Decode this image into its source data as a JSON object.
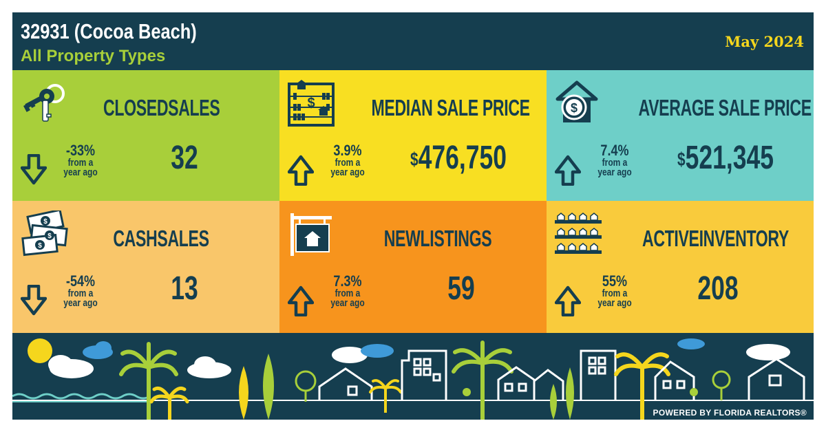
{
  "header": {
    "title": "32931 (Cocoa Beach)",
    "subtitle": "All Property Types",
    "date": "May 2024"
  },
  "colors": {
    "navy": "#153e4f",
    "green": "#a8cf3a",
    "yellow": "#f8df22",
    "teal": "#6ecfc8",
    "peach": "#f9c66a",
    "orange": "#f7941d",
    "gold": "#f9cb3c"
  },
  "tiles": [
    {
      "label": "CLOSEDSALES",
      "value": "32",
      "change": "-33%",
      "change_text": "from a",
      "change_text2": "year ago",
      "direction": "down",
      "icon": "keys-icon"
    },
    {
      "label": "MEDIAN SALE PRICE",
      "value_prefix": "$",
      "value": "476,750",
      "change": "3.9%",
      "change_text": "from a",
      "change_text2": "year ago",
      "direction": "up",
      "icon": "abacus-icon"
    },
    {
      "label": "AVERAGE SALE PRICE",
      "value_prefix": "$",
      "value": "521,345",
      "change": "7.4%",
      "change_text": "from a",
      "change_text2": "year ago",
      "direction": "up",
      "icon": "house-dollar-icon"
    },
    {
      "label": "CASHSALES",
      "value": "13",
      "change": "-54%",
      "change_text": "from a",
      "change_text2": "year ago",
      "direction": "down",
      "icon": "cash-icon"
    },
    {
      "label": "NEWLISTINGS",
      "value": "59",
      "change": "7.3%",
      "change_text": "from a",
      "change_text2": "year ago",
      "direction": "up",
      "icon": "for-sale-sign-icon"
    },
    {
      "label": "ACTIVEINVENTORY",
      "value": "208",
      "change": "55%",
      "change_text": "from a",
      "change_text2": "year ago",
      "direction": "up",
      "icon": "houses-grid-icon"
    }
  ],
  "footer": {
    "powered_by": "POWERED BY FLORIDA REALTORS®",
    "illustration": "beach-cityscape-illustration"
  }
}
